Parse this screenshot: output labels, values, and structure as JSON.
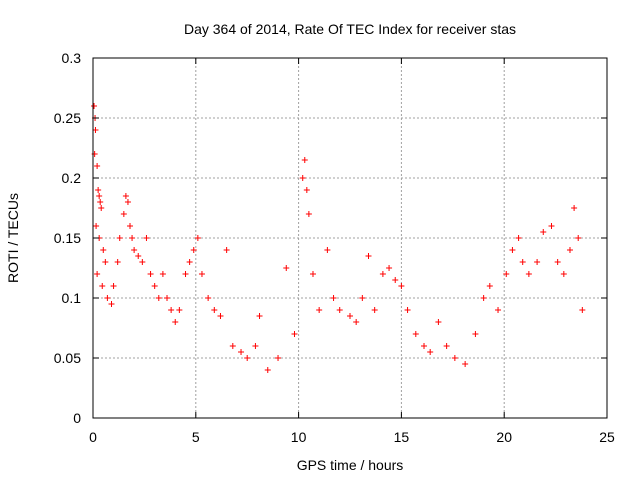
{
  "chart_data": {
    "type": "scatter",
    "title": "Day 364 of 2014, Rate Of TEC Index for receiver stas",
    "xlabel": "GPS time / hours",
    "ylabel": "ROTI / TECUs",
    "xlim": [
      0,
      25
    ],
    "ylim": [
      0,
      0.3
    ],
    "xticks": [
      0,
      5,
      10,
      15,
      20,
      25
    ],
    "xtick_labels": [
      "0",
      "5",
      "10",
      "15",
      "20",
      "25"
    ],
    "yticks": [
      0,
      0.05,
      0.1,
      0.15,
      0.2,
      0.25,
      0.3
    ],
    "ytick_labels": [
      "0",
      "0.05",
      "0.1",
      "0.15",
      "0.2",
      "0.25",
      "0.3"
    ],
    "grid": true,
    "marker": "+",
    "color": "#ff0000",
    "series": [
      {
        "name": "ROTI",
        "points": [
          [
            0.05,
            0.26
          ],
          [
            0.1,
            0.25
          ],
          [
            0.12,
            0.24
          ],
          [
            0.08,
            0.22
          ],
          [
            0.2,
            0.21
          ],
          [
            0.25,
            0.19
          ],
          [
            0.3,
            0.185
          ],
          [
            0.35,
            0.18
          ],
          [
            0.4,
            0.175
          ],
          [
            0.15,
            0.16
          ],
          [
            0.3,
            0.15
          ],
          [
            0.5,
            0.14
          ],
          [
            0.6,
            0.13
          ],
          [
            0.2,
            0.12
          ],
          [
            0.45,
            0.11
          ],
          [
            0.7,
            0.1
          ],
          [
            0.9,
            0.095
          ],
          [
            1.0,
            0.11
          ],
          [
            1.2,
            0.13
          ],
          [
            1.3,
            0.15
          ],
          [
            1.5,
            0.17
          ],
          [
            1.6,
            0.185
          ],
          [
            1.7,
            0.18
          ],
          [
            1.8,
            0.16
          ],
          [
            1.9,
            0.15
          ],
          [
            2.0,
            0.14
          ],
          [
            2.2,
            0.135
          ],
          [
            2.4,
            0.13
          ],
          [
            2.6,
            0.15
          ],
          [
            2.8,
            0.12
          ],
          [
            3.0,
            0.11
          ],
          [
            3.2,
            0.1
          ],
          [
            3.4,
            0.12
          ],
          [
            3.6,
            0.1
          ],
          [
            3.8,
            0.09
          ],
          [
            4.0,
            0.08
          ],
          [
            4.2,
            0.09
          ],
          [
            4.5,
            0.12
          ],
          [
            4.7,
            0.13
          ],
          [
            4.9,
            0.14
          ],
          [
            5.1,
            0.15
          ],
          [
            5.3,
            0.12
          ],
          [
            5.6,
            0.1
          ],
          [
            5.9,
            0.09
          ],
          [
            6.2,
            0.085
          ],
          [
            6.5,
            0.14
          ],
          [
            6.8,
            0.06
          ],
          [
            7.2,
            0.055
          ],
          [
            7.5,
            0.05
          ],
          [
            7.9,
            0.06
          ],
          [
            8.1,
            0.085
          ],
          [
            8.5,
            0.04
          ],
          [
            9.0,
            0.05
          ],
          [
            9.4,
            0.125
          ],
          [
            9.8,
            0.07
          ],
          [
            10.2,
            0.2
          ],
          [
            10.3,
            0.215
          ],
          [
            10.4,
            0.19
          ],
          [
            10.5,
            0.17
          ],
          [
            10.7,
            0.12
          ],
          [
            11.0,
            0.09
          ],
          [
            11.4,
            0.14
          ],
          [
            11.7,
            0.1
          ],
          [
            12.0,
            0.09
          ],
          [
            12.5,
            0.085
          ],
          [
            12.8,
            0.08
          ],
          [
            13.1,
            0.1
          ],
          [
            13.4,
            0.135
          ],
          [
            13.7,
            0.09
          ],
          [
            14.1,
            0.12
          ],
          [
            14.4,
            0.125
          ],
          [
            14.7,
            0.115
          ],
          [
            15.0,
            0.11
          ],
          [
            15.3,
            0.09
          ],
          [
            15.7,
            0.07
          ],
          [
            16.1,
            0.06
          ],
          [
            16.4,
            0.055
          ],
          [
            16.8,
            0.08
          ],
          [
            17.2,
            0.06
          ],
          [
            17.6,
            0.05
          ],
          [
            18.1,
            0.045
          ],
          [
            18.6,
            0.07
          ],
          [
            19.0,
            0.1
          ],
          [
            19.3,
            0.11
          ],
          [
            19.7,
            0.09
          ],
          [
            20.1,
            0.12
          ],
          [
            20.4,
            0.14
          ],
          [
            20.7,
            0.15
          ],
          [
            20.9,
            0.13
          ],
          [
            21.2,
            0.12
          ],
          [
            21.6,
            0.13
          ],
          [
            21.9,
            0.155
          ],
          [
            22.3,
            0.16
          ],
          [
            22.6,
            0.13
          ],
          [
            22.9,
            0.12
          ],
          [
            23.2,
            0.14
          ],
          [
            23.4,
            0.175
          ],
          [
            23.6,
            0.15
          ],
          [
            23.8,
            0.09
          ]
        ]
      }
    ]
  }
}
